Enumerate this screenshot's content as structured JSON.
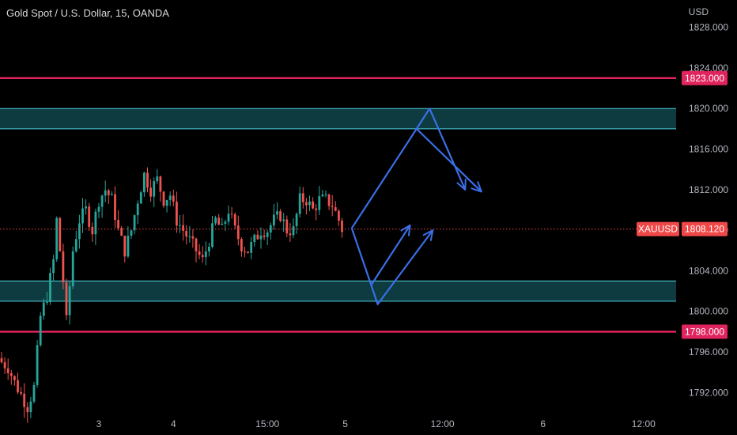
{
  "header": {
    "title": "Gold Spot / U.S. Dollar, 15, OANDA",
    "currency": "USD"
  },
  "colors": {
    "background": "#000000",
    "up_candle": "#26a69a",
    "down_candle": "#ef5350",
    "resistance_line": "#e0245e",
    "zone_fill": "#0e3b3f",
    "zone_border": "#4dd0e1",
    "arrow": "#3a6fe8",
    "price_tag": "#f04848"
  },
  "chart_data": {
    "type": "candlestick",
    "symbol": "XAUUSD",
    "last_price": 1808.12,
    "last_price_label": "1808.120",
    "ylim": [
      1790.0,
      1830.7
    ],
    "y_ticks": [
      "1792.000",
      "1796.000",
      "1800.000",
      "1804.000",
      "1808.000",
      "1812.000",
      "1816.000",
      "1820.000",
      "1824.000",
      "1828.000"
    ],
    "y_tick_values": [
      1792,
      1796,
      1800,
      1804,
      1808,
      1812,
      1816,
      1820,
      1824,
      1828
    ],
    "x_ticks": [
      {
        "label": "3",
        "bar": 30
      },
      {
        "label": "4",
        "bar": 53
      },
      {
        "label": "15:00",
        "bar": 82
      },
      {
        "label": "5",
        "bar": 106
      },
      {
        "label": "12:00",
        "bar": 136
      },
      {
        "label": "6",
        "bar": 167
      },
      {
        "label": "12:00",
        "bar": 198
      }
    ],
    "horizontal_lines": [
      {
        "price": 1823.0,
        "label": "1823.000"
      },
      {
        "price": 1798.0,
        "label": "1798.000"
      }
    ],
    "zones": [
      {
        "top": 1820.0,
        "bottom": 1818.0
      },
      {
        "top": 1803.0,
        "bottom": 1801.0
      }
    ],
    "arrows": [
      {
        "points": [
          [
            108,
            1808.2
          ],
          [
            128,
            1818.0
          ],
          [
            132,
            1820.0
          ],
          [
            143,
            1812.0
          ]
        ]
      },
      {
        "points": [
          [
            128,
            1818.0
          ],
          [
            148,
            1811.8
          ]
        ]
      },
      {
        "points": [
          [
            108,
            1808.2
          ],
          [
            114,
            1802.6
          ],
          [
            126,
            1808.5
          ]
        ]
      },
      {
        "points": [
          [
            114,
            1802.6
          ],
          [
            116,
            1800.7
          ],
          [
            133,
            1808.0
          ]
        ]
      }
    ],
    "keyframes": [
      [
        0,
        1795
      ],
      [
        2,
        1794.5
      ],
      [
        4,
        1793
      ],
      [
        6,
        1791.8
      ],
      [
        8,
        1790.6
      ],
      [
        10,
        1792.5
      ],
      [
        12,
        1799.5
      ],
      [
        14,
        1801.5
      ],
      [
        16,
        1805
      ],
      [
        17,
        1809
      ],
      [
        19,
        1803
      ],
      [
        20,
        1799
      ],
      [
        22,
        1806
      ],
      [
        24,
        1809
      ],
      [
        26,
        1810
      ],
      [
        28,
        1808
      ],
      [
        30,
        1811
      ],
      [
        32,
        1812
      ],
      [
        34,
        1811
      ],
      [
        36,
        1808
      ],
      [
        38,
        1806
      ],
      [
        40,
        1808
      ],
      [
        42,
        1811
      ],
      [
        44,
        1813.5
      ],
      [
        46,
        1812
      ],
      [
        48,
        1813
      ],
      [
        50,
        1811
      ],
      [
        52,
        1811.5
      ],
      [
        54,
        1809
      ],
      [
        56,
        1808
      ],
      [
        58,
        1807
      ],
      [
        60,
        1806
      ],
      [
        62,
        1805
      ],
      [
        64,
        1807
      ],
      [
        66,
        1809
      ],
      [
        68,
        1808
      ],
      [
        70,
        1810
      ],
      [
        72,
        1808
      ],
      [
        74,
        1806.5
      ],
      [
        76,
        1806
      ],
      [
        78,
        1807
      ],
      [
        80,
        1808
      ],
      [
        82,
        1808
      ],
      [
        84,
        1809
      ],
      [
        86,
        1809.5
      ],
      [
        88,
        1808
      ],
      [
        90,
        1808
      ],
      [
        92,
        1811
      ],
      [
        94,
        1811
      ],
      [
        96,
        1810
      ],
      [
        98,
        1811
      ],
      [
        100,
        1811
      ],
      [
        102,
        1810.5
      ],
      [
        104,
        1809
      ],
      [
        105,
        1808.1
      ]
    ]
  },
  "tags": {
    "symbol": "XAUUSD",
    "last_price": "1808.120",
    "level_top": "1823.000",
    "level_bottom": "1798.000"
  }
}
